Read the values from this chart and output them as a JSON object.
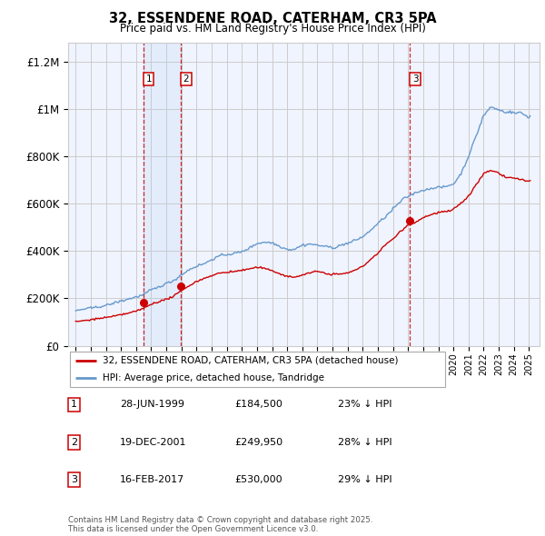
{
  "title": "32, ESSENDENE ROAD, CATERHAM, CR3 5PA",
  "subtitle": "Price paid vs. HM Land Registry's House Price Index (HPI)",
  "hpi_label": "HPI: Average price, detached house, Tandridge",
  "price_label": "32, ESSENDENE ROAD, CATERHAM, CR3 5PA (detached house)",
  "footnote": "Contains HM Land Registry data © Crown copyright and database right 2025.\nThis data is licensed under the Open Government Licence v3.0.",
  "sales": [
    {
      "num": 1,
      "date": "28-JUN-1999",
      "price": 184500,
      "pct": "23%",
      "x_year": 1999.49
    },
    {
      "num": 2,
      "date": "19-DEC-2001",
      "price": 249950,
      "pct": "28%",
      "x_year": 2001.96
    },
    {
      "num": 3,
      "date": "16-FEB-2017",
      "price": 530000,
      "pct": "29%",
      "x_year": 2017.12
    }
  ],
  "ylim": [
    0,
    1280000
  ],
  "xlim_start": 1994.5,
  "xlim_end": 2025.7,
  "hpi_color": "#6699cc",
  "price_color": "#cc0000",
  "vline_color": "#cc0000",
  "grid_color": "#cccccc",
  "bg_color": "#ffffff",
  "shade_color": "#ddeeff"
}
